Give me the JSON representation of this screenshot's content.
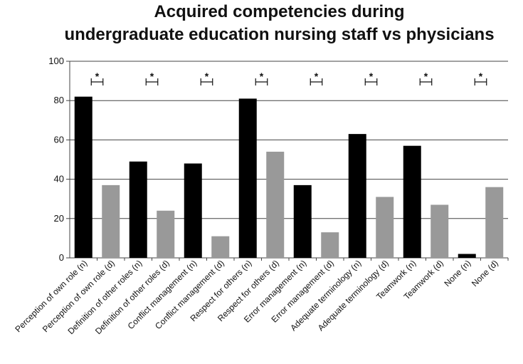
{
  "chart_data": {
    "type": "bar",
    "title": [
      "Acquired competencies during",
      "undergraduate education nursing staff vs physicians"
    ],
    "categories": [
      "Perception of own role (n)",
      "Perception of own role (d)",
      "Definition of other roles (n)",
      "Definition of other roles (d)",
      "Conflict management (n)",
      "Conflict management (d)",
      "Respect for others (n)",
      "Respect for others (d)",
      "Error management (n)",
      "Error management (d)",
      "Adequate terminology (n)",
      "Adequate terminology (d)",
      "Teamwork (n)",
      "Teamwork (d)",
      "None (n)",
      "None (d)"
    ],
    "values": [
      82,
      37,
      49,
      24,
      48,
      11,
      81,
      54,
      37,
      13,
      63,
      31,
      57,
      27,
      2,
      36
    ],
    "bar_colors": [
      "#000000",
      "#999999"
    ],
    "ylim": [
      0,
      100
    ],
    "yticks": [
      0,
      20,
      40,
      60,
      80,
      100
    ],
    "grid": true,
    "significance_marker": "*",
    "significance_pairs": 8
  }
}
